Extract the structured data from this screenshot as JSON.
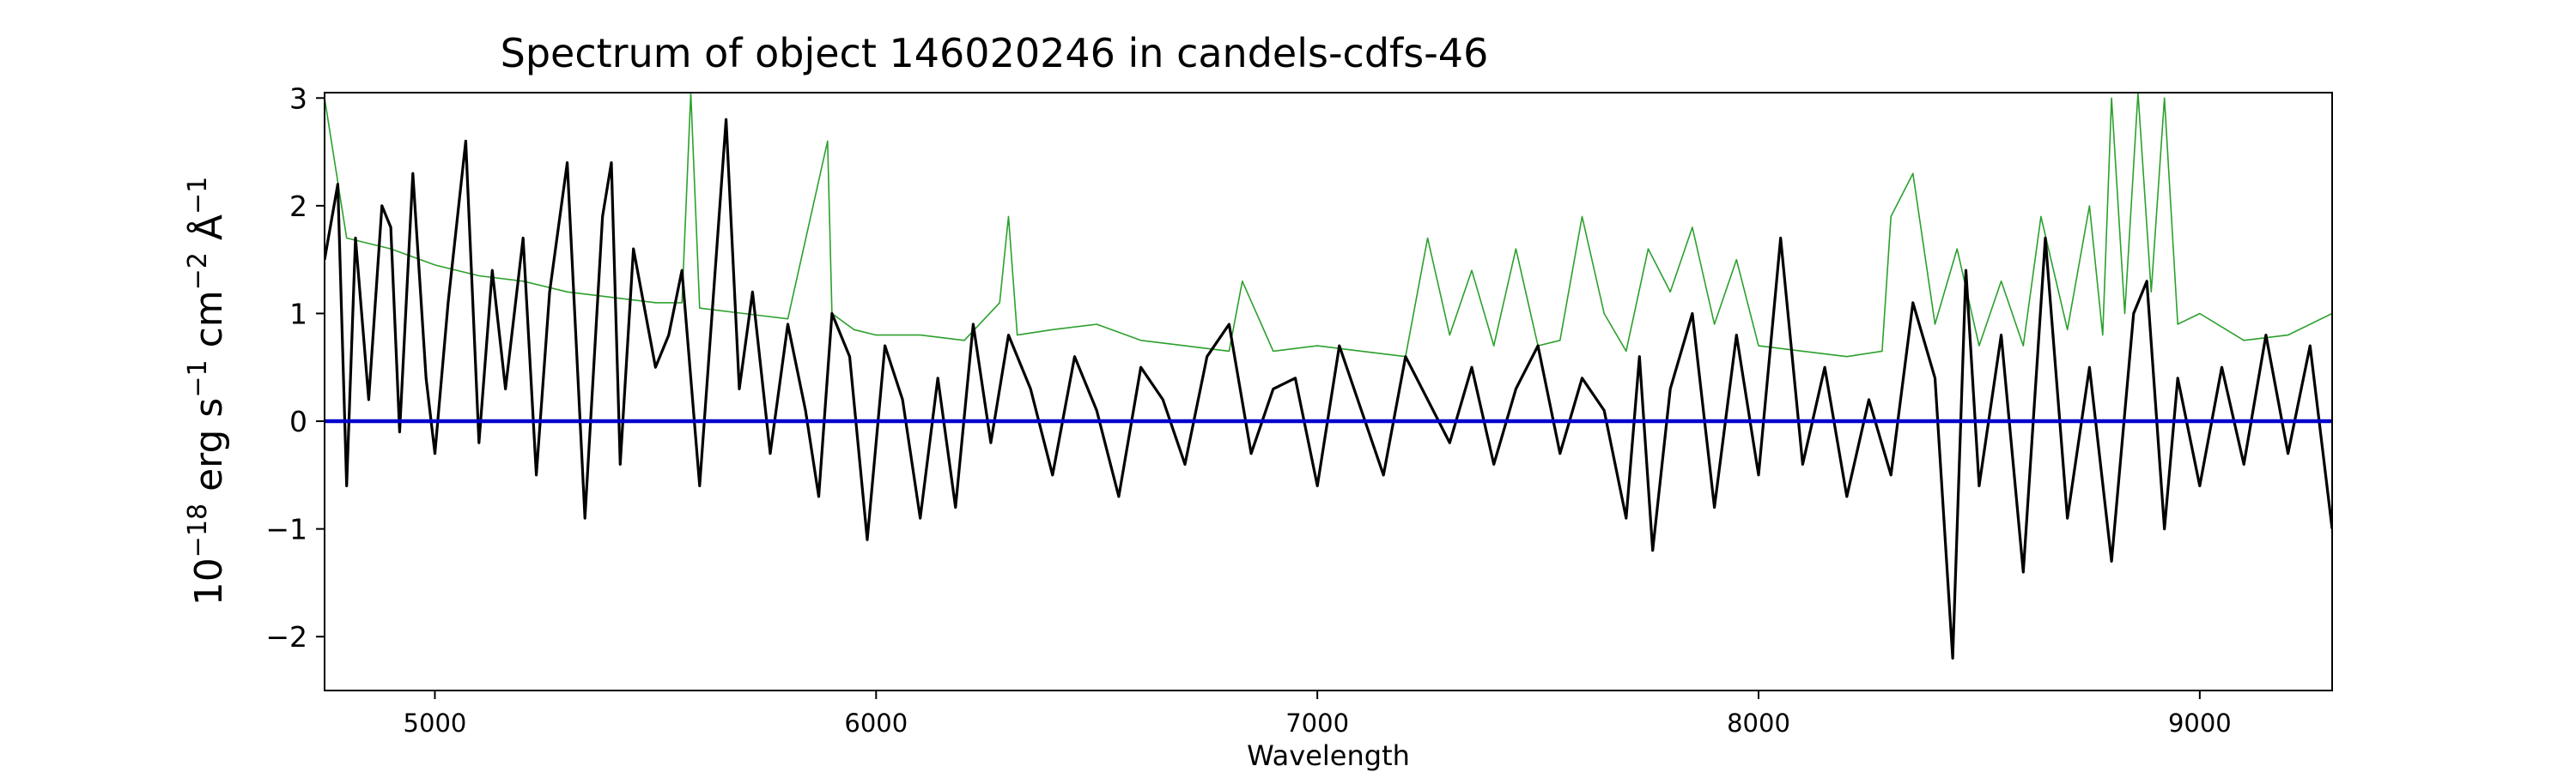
{
  "chart_data": {
    "type": "line",
    "title": "Spectrum of object 146020246 in candels-cdfs-46",
    "xlabel": "Wavelength",
    "ylabel_parts": {
      "base": "10",
      "exp1": "−18",
      "erg": " erg s",
      "exp2": "−1",
      "cm": " cm",
      "exp3": "−2",
      "ang": " Å",
      "exp4": "−1"
    },
    "xlim": [
      4750,
      9300
    ],
    "ylim": [
      -2.5,
      3.05
    ],
    "xticks": [
      5000,
      6000,
      7000,
      8000,
      9000
    ],
    "xtick_labels": [
      "5000",
      "6000",
      "7000",
      "8000",
      "9000"
    ],
    "yticks": [
      -2,
      -1,
      0,
      1,
      2,
      3
    ],
    "ytick_labels": [
      "−2",
      "−1",
      "0",
      "1",
      "2",
      "3"
    ],
    "grid": false,
    "colors": {
      "flux": "#000000",
      "sky": "#2ca02c",
      "zero": "#0000cc"
    },
    "series": [
      {
        "role": "flux",
        "x": [
          4750,
          4780,
          4800,
          4820,
          4850,
          4880,
          4900,
          4920,
          4950,
          4980,
          5000,
          5030,
          5070,
          5100,
          5130,
          5160,
          5200,
          5230,
          5260,
          5300,
          5340,
          5380,
          5400,
          5420,
          5450,
          5500,
          5530,
          5560,
          5600,
          5630,
          5660,
          5690,
          5720,
          5760,
          5800,
          5840,
          5870,
          5900,
          5940,
          5980,
          6020,
          6060,
          6100,
          6140,
          6180,
          6220,
          6260,
          6300,
          6350,
          6400,
          6450,
          6500,
          6550,
          6600,
          6650,
          6700,
          6750,
          6800,
          6850,
          6900,
          6950,
          7000,
          7050,
          7100,
          7150,
          7200,
          7250,
          7300,
          7350,
          7400,
          7450,
          7500,
          7550,
          7600,
          7650,
          7700,
          7730,
          7760,
          7800,
          7850,
          7900,
          7950,
          8000,
          8050,
          8100,
          8150,
          8200,
          8250,
          8300,
          8350,
          8400,
          8440,
          8470,
          8500,
          8550,
          8600,
          8650,
          8700,
          8750,
          8800,
          8850,
          8880,
          8920,
          8950,
          9000,
          9050,
          9100,
          9150,
          9200,
          9250,
          9300
        ],
        "y": [
          1.5,
          2.2,
          -0.6,
          1.7,
          0.2,
          2.0,
          1.8,
          -0.1,
          2.3,
          0.4,
          -0.3,
          1.1,
          2.6,
          -0.2,
          1.4,
          0.3,
          1.7,
          -0.5,
          1.2,
          2.4,
          -0.9,
          1.9,
          2.4,
          -0.4,
          1.6,
          0.5,
          0.8,
          1.4,
          -0.6,
          1.1,
          2.8,
          0.3,
          1.2,
          -0.3,
          0.9,
          0.1,
          -0.7,
          1.0,
          0.6,
          -1.1,
          0.7,
          0.2,
          -0.9,
          0.4,
          -0.8,
          0.9,
          -0.2,
          0.8,
          0.3,
          -0.5,
          0.6,
          0.1,
          -0.7,
          0.5,
          0.2,
          -0.4,
          0.6,
          0.9,
          -0.3,
          0.3,
          0.4,
          -0.6,
          0.7,
          0.1,
          -0.5,
          0.6,
          0.2,
          -0.2,
          0.5,
          -0.4,
          0.3,
          0.7,
          -0.3,
          0.4,
          0.1,
          -0.9,
          0.6,
          -1.2,
          0.3,
          1.0,
          -0.8,
          0.8,
          -0.5,
          1.7,
          -0.4,
          0.5,
          -0.7,
          0.2,
          -0.5,
          1.1,
          0.4,
          -2.2,
          1.4,
          -0.6,
          0.8,
          -1.4,
          1.7,
          -0.9,
          0.5,
          -1.3,
          1.0,
          1.3,
          -1.0,
          0.4,
          -0.6,
          0.5,
          -0.4,
          0.8,
          -0.3,
          0.7,
          -1.0
        ]
      },
      {
        "role": "sky",
        "x": [
          4750,
          4800,
          4900,
          5000,
          5100,
          5200,
          5300,
          5400,
          5500,
          5560,
          5580,
          5600,
          5700,
          5800,
          5890,
          5900,
          5950,
          6000,
          6100,
          6200,
          6280,
          6300,
          6320,
          6400,
          6500,
          6600,
          6700,
          6800,
          6830,
          6900,
          7000,
          7100,
          7200,
          7250,
          7300,
          7350,
          7400,
          7450,
          7500,
          7550,
          7600,
          7650,
          7700,
          7750,
          7800,
          7850,
          7900,
          7950,
          8000,
          8100,
          8200,
          8280,
          8300,
          8350,
          8400,
          8450,
          8500,
          8550,
          8600,
          8640,
          8700,
          8750,
          8780,
          8800,
          8830,
          8860,
          8890,
          8920,
          8950,
          9000,
          9100,
          9200,
          9300
        ],
        "y": [
          3.0,
          1.7,
          1.6,
          1.45,
          1.35,
          1.3,
          1.2,
          1.15,
          1.1,
          1.1,
          3.05,
          1.05,
          1.0,
          0.95,
          2.6,
          1.0,
          0.85,
          0.8,
          0.8,
          0.75,
          1.1,
          1.9,
          0.8,
          0.85,
          0.9,
          0.75,
          0.7,
          0.65,
          1.3,
          0.65,
          0.7,
          0.65,
          0.6,
          1.7,
          0.8,
          1.4,
          0.7,
          1.6,
          0.7,
          0.75,
          1.9,
          1.0,
          0.65,
          1.6,
          1.2,
          1.8,
          0.9,
          1.5,
          0.7,
          0.65,
          0.6,
          0.65,
          1.9,
          2.3,
          0.9,
          1.6,
          0.7,
          1.3,
          0.7,
          1.9,
          0.85,
          2.0,
          0.8,
          3.0,
          1.0,
          3.05,
          1.2,
          3.0,
          0.9,
          1.0,
          0.75,
          0.8,
          1.0
        ]
      },
      {
        "role": "zero",
        "x": [
          4750,
          9300
        ],
        "y": [
          0,
          0
        ]
      }
    ]
  }
}
